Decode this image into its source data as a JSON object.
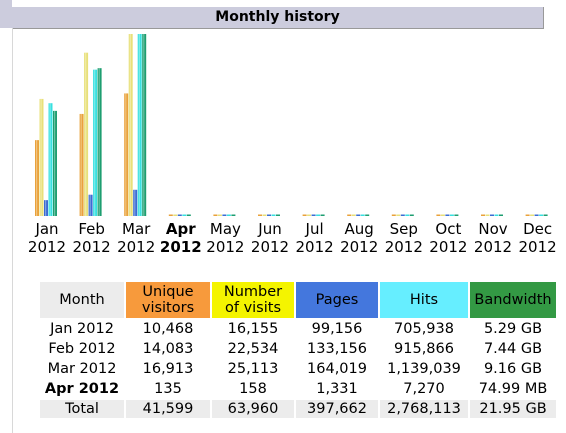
{
  "title": "Monthly history",
  "colors": {
    "visitors": "#e9a23b",
    "visits": "#e8e07a",
    "pages": "#3b6cd3",
    "hits": "#38e0e0",
    "bandwidth": "#1e9e70"
  },
  "months": [
    {
      "m": "Jan",
      "y": "2012",
      "current": false
    },
    {
      "m": "Feb",
      "y": "2012",
      "current": false
    },
    {
      "m": "Mar",
      "y": "2012",
      "current": false
    },
    {
      "m": "Apr",
      "y": "2012",
      "current": true
    },
    {
      "m": "May",
      "y": "2012",
      "current": false
    },
    {
      "m": "Jun",
      "y": "2012",
      "current": false
    },
    {
      "m": "Jul",
      "y": "2012",
      "current": false
    },
    {
      "m": "Aug",
      "y": "2012",
      "current": false
    },
    {
      "m": "Sep",
      "y": "2012",
      "current": false
    },
    {
      "m": "Oct",
      "y": "2012",
      "current": false
    },
    {
      "m": "Nov",
      "y": "2012",
      "current": false
    },
    {
      "m": "Dec",
      "y": "2012",
      "current": false
    }
  ],
  "chart_data": {
    "type": "bar",
    "categories": [
      "Jan 2012",
      "Feb 2012",
      "Mar 2012",
      "Apr 2012",
      "May 2012",
      "Jun 2012",
      "Jul 2012",
      "Aug 2012",
      "Sep 2012",
      "Oct 2012",
      "Nov 2012",
      "Dec 2012"
    ],
    "series": [
      {
        "name": "Unique visitors",
        "values": [
          10468,
          14083,
          16913,
          135,
          0,
          0,
          0,
          0,
          0,
          0,
          0,
          0
        ]
      },
      {
        "name": "Number of visits",
        "values": [
          16155,
          22534,
          25113,
          158,
          0,
          0,
          0,
          0,
          0,
          0,
          0,
          0
        ]
      },
      {
        "name": "Pages",
        "values": [
          99156,
          133156,
          164019,
          1331,
          0,
          0,
          0,
          0,
          0,
          0,
          0,
          0
        ]
      },
      {
        "name": "Hits",
        "values": [
          705938,
          915866,
          1139039,
          7270,
          0,
          0,
          0,
          0,
          0,
          0,
          0,
          0
        ]
      },
      {
        "name": "Bandwidth",
        "values": [
          5.29,
          7.44,
          9.16,
          0.0732,
          0,
          0,
          0,
          0,
          0,
          0,
          0,
          0
        ]
      }
    ]
  },
  "table": {
    "headers": {
      "month": "Month",
      "visitors_1": "Unique",
      "visitors_2": "visitors",
      "visits_1": "Number",
      "visits_2": "of visits",
      "pages": "Pages",
      "hits": "Hits",
      "bandwidth": "Bandwidth"
    },
    "rows": [
      {
        "month": "Jan 2012",
        "visitors": "10,468",
        "visits": "16,155",
        "pages": "99,156",
        "hits": "705,938",
        "bandwidth": "5.29 GB"
      },
      {
        "month": "Feb 2012",
        "visitors": "14,083",
        "visits": "22,534",
        "pages": "133,156",
        "hits": "915,866",
        "bandwidth": "7.44 GB"
      },
      {
        "month": "Mar 2012",
        "visitors": "16,913",
        "visits": "25,113",
        "pages": "164,019",
        "hits": "1,139,039",
        "bandwidth": "9.16 GB"
      },
      {
        "month": "Apr 2012",
        "visitors": "135",
        "visits": "158",
        "pages": "1,331",
        "hits": "7,270",
        "bandwidth": "74.99 MB"
      }
    ],
    "total": {
      "month": "Total",
      "visitors": "41,599",
      "visits": "63,960",
      "pages": "397,662",
      "hits": "2,768,113",
      "bandwidth": "21.95 GB"
    }
  }
}
